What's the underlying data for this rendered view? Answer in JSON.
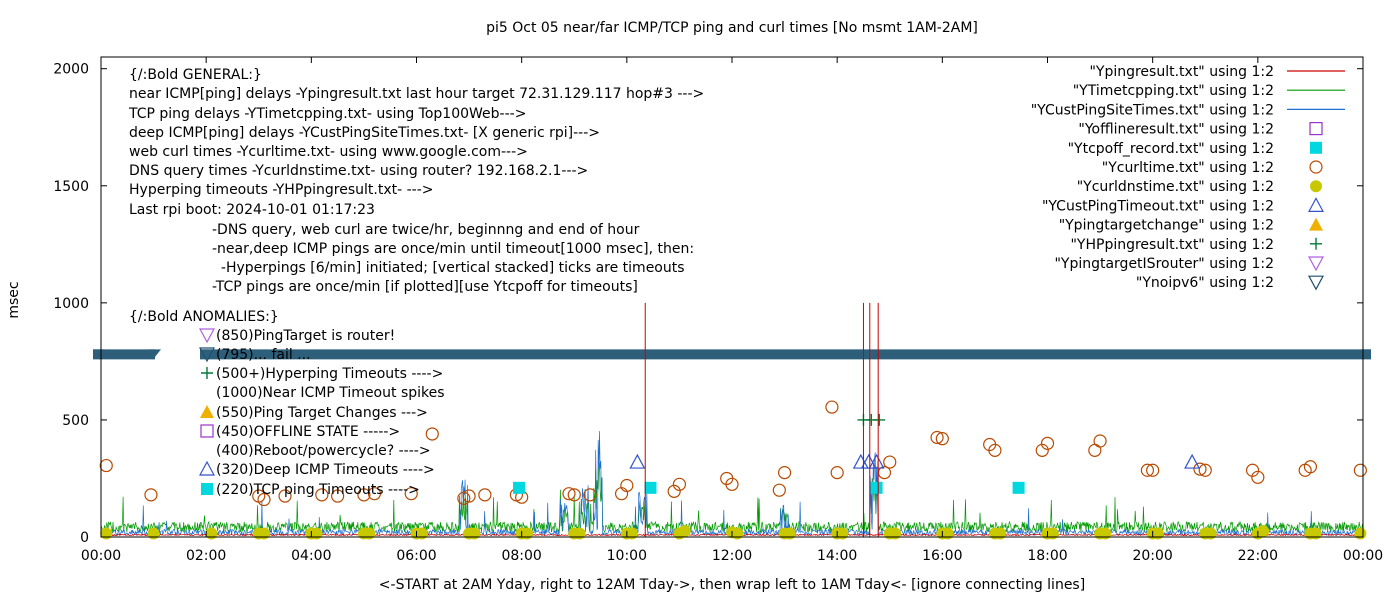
{
  "chart_data": {
    "type": "scatter",
    "title": "pi5 Oct 05  near/far ICMP/TCP ping and curl times [No msmt 1AM-2AM]",
    "xlabel": "<-START at 2AM Yday, right to 12AM Tday->, then wrap left to 1AM Tday<- [ignore connecting lines]",
    "ylabel": "msec",
    "xlim": [
      0,
      24
    ],
    "ylim": [
      0,
      2050
    ],
    "x_ticks": [
      "00:00",
      "02:00",
      "04:00",
      "06:00",
      "08:00",
      "10:00",
      "12:00",
      "14:00",
      "16:00",
      "18:00",
      "20:00",
      "22:00",
      "00:00"
    ],
    "y_ticks": [
      "0",
      "500",
      "1000",
      "1500",
      "2000"
    ],
    "x_tick_values": [
      0,
      2,
      4,
      6,
      8,
      10,
      12,
      14,
      16,
      18,
      20,
      22,
      24
    ],
    "y_tick_values": [
      0,
      500,
      1000,
      1500,
      2000
    ],
    "grid": false,
    "legend_position": "top-right",
    "band": {
      "y": 780,
      "color": "#2e5f7a",
      "note": "dense stacked timeout ticks across full width"
    },
    "legend": [
      {
        "label": "\"Ypingresult.txt\" using 1:2",
        "marker": "line",
        "color": "#cc0000"
      },
      {
        "label": "\"YTimetcpping.txt\" using 1:2",
        "marker": "line",
        "color": "#009900"
      },
      {
        "label": "\"YCustPingSiteTimes.txt\" using 1:2",
        "marker": "line",
        "color": "#1f6fd0"
      },
      {
        "label": "\"Yofflineresult.txt\" using 1:2",
        "marker": "open-square",
        "color": "#9933cc"
      },
      {
        "label": "\"Ytcpoff_record.txt\" using 1:2",
        "marker": "filled-square",
        "color": "#00d8e0"
      },
      {
        "label": "\"Ycurltime.txt\" using 1:2",
        "marker": "open-circle",
        "color": "#b84a00"
      },
      {
        "label": "\"Ycurldnstime.txt\" using 1:2",
        "marker": "filled-circle",
        "color": "#c8c800"
      },
      {
        "label": "\"YCustPingTimeout.txt\" using 1:2",
        "marker": "open-triangle",
        "color": "#3355cc"
      },
      {
        "label": "\"Ypingtargetchange\" using 1:2",
        "marker": "filled-triangle",
        "color": "#f0b000"
      },
      {
        "label": "\"YHPpingresult.txt\" using 1:2",
        "marker": "plus",
        "color": "#007a3a"
      },
      {
        "label": "\"YpingtargetISrouter\" using 1:2",
        "marker": "open-triangle-down",
        "color": "#b060e0"
      },
      {
        "label": "\"Ynoipv6\" using 1:2",
        "marker": "open-triangle-down",
        "color": "#1f4f70"
      }
    ],
    "annotations_general": [
      "{/:Bold GENERAL:}",
      "near ICMP[ping] delays -Ypingresult.txt last hour target 72.31.129.117 hop#3 --->",
      "TCP ping delays -YTimetcpping.txt- using Top100Web--->",
      "deep ICMP[ping] delays -YCustPingSiteTimes.txt- [X generic rpi]--->",
      "web curl times -Ycurltime.txt- using www.google.com--->",
      "DNS query times -Ycurldnstime.txt- using router? 192.168.2.1--->",
      "Hyperping timeouts -YHPpingresult.txt- --->",
      "Last rpi boot: 2024-10-01 01:17:23"
    ],
    "annotations_notes": [
      "-DNS query, web curl are twice/hr, beginnng and end of hour",
      "-near,deep ICMP pings are once/min until timeout[1000 msec], then:",
      "  -Hyperpings [6/min] initiated; [vertical stacked] ticks are timeouts",
      "-TCP pings are once/min [if plotted][use Ytcpoff for timeouts]"
    ],
    "annotations_anomalies_title": "{/:Bold ANOMALIES:}",
    "annotations_anomalies": [
      {
        "text": "(850)PingTarget is router!",
        "y": 850,
        "marker": "open-triangle-down",
        "color": "#b060e0"
      },
      {
        "text": "(795)... fail ...",
        "y": 795,
        "marker": "open-triangle-down",
        "color": "#1f4f70"
      },
      {
        "text": "(500+)Hyperping Timeouts ---->",
        "y": 700,
        "marker": "plus",
        "color": "#007a3a"
      },
      {
        "text": "(1000)Near ICMP Timeout spikes",
        "y": 620,
        "marker": "none",
        "color": "#000000"
      },
      {
        "text": "(550)Ping Target Changes --->",
        "y": 540,
        "marker": "filled-triangle",
        "color": "#f0b000"
      },
      {
        "text": "(450)OFFLINE STATE ----->",
        "y": 455,
        "marker": "open-square",
        "color": "#9933cc"
      },
      {
        "text": "(400)Reboot/powercycle? ---->",
        "y": 373,
        "marker": "none",
        "color": "#000000"
      },
      {
        "text": "(320)Deep ICMP Timeouts ---->",
        "y": 290,
        "marker": "open-triangle",
        "color": "#3355cc"
      },
      {
        "text": "(220)TCP ping Timeouts ---->",
        "y": 208,
        "marker": "filled-square",
        "color": "#00d8e0"
      }
    ],
    "series": [
      {
        "name": "\"Ycurltime.txt\" using 1:2",
        "marker": "open-circle",
        "color": "#b84a00",
        "x": [
          0.1,
          0.95,
          3.0,
          3.1,
          3.5,
          4.2,
          4.5,
          5.0,
          5.2,
          5.9,
          6.3,
          6.9,
          7.0,
          7.3,
          7.9,
          8.0,
          8.9,
          9.0,
          9.3,
          9.9,
          10.0,
          10.9,
          11.0,
          11.9,
          12.0,
          12.9,
          13.0,
          13.9,
          14.0,
          14.9,
          15.0,
          15.9,
          16.0,
          16.9,
          17.0,
          17.9,
          18.0,
          18.9,
          19.0,
          19.9,
          20.0,
          20.9,
          21.0,
          21.9,
          22.0,
          22.9,
          23.0,
          23.95
        ],
        "y": [
          305,
          180,
          175,
          160,
          175,
          180,
          175,
          180,
          185,
          185,
          440,
          165,
          175,
          180,
          180,
          170,
          185,
          180,
          180,
          185,
          220,
          195,
          225,
          250,
          225,
          200,
          275,
          555,
          275,
          275,
          320,
          425,
          420,
          395,
          370,
          370,
          400,
          370,
          410,
          285,
          285,
          290,
          285,
          285,
          255,
          285,
          300,
          285
        ]
      },
      {
        "name": "\"Ycurldnstime.txt\" using 1:2",
        "marker": "filled-circle",
        "color": "#c8c800",
        "x": [
          0.1,
          1.0,
          2.1,
          3.0,
          3.1,
          4.0,
          4.1,
          5.0,
          5.1,
          6.0,
          6.1,
          7.0,
          7.1,
          8.0,
          8.1,
          9.0,
          9.1,
          10.0,
          10.1,
          11.0,
          11.1,
          12.0,
          12.1,
          13.0,
          13.1,
          14.0,
          14.1,
          15.0,
          15.1,
          16.0,
          16.1,
          17.0,
          17.1,
          18.0,
          18.1,
          19.0,
          19.1,
          20.0,
          20.1,
          21.0,
          21.1,
          22.0,
          22.1,
          23.0,
          23.1,
          23.95
        ],
        "y": [
          15,
          15,
          15,
          15,
          15,
          15,
          15,
          15,
          15,
          15,
          15,
          15,
          15,
          15,
          15,
          15,
          15,
          15,
          15,
          15,
          25,
          20,
          15,
          15,
          15,
          15,
          15,
          15,
          15,
          15,
          15,
          15,
          15,
          15,
          15,
          15,
          15,
          15,
          15,
          15,
          15,
          15,
          25,
          15,
          15,
          15
        ]
      },
      {
        "name": "\"Ytcpoff_record.txt\" using 1:2",
        "marker": "filled-square",
        "color": "#00d8e0",
        "x": [
          7.95,
          10.45,
          14.75,
          17.45
        ],
        "y": [
          210,
          210,
          210,
          210
        ]
      },
      {
        "name": "\"YCustPingTimeout.txt\" using 1:2",
        "marker": "open-triangle",
        "color": "#3355cc",
        "x": [
          10.2,
          14.45,
          14.6,
          14.75,
          20.75
        ],
        "y": [
          320,
          320,
          320,
          320,
          320
        ]
      },
      {
        "name": "\"YHPpingresult.txt\" using 1:2",
        "marker": "plus",
        "color": "#007a3a",
        "x": [
          14.5,
          14.65,
          14.8
        ],
        "y": [
          500,
          500,
          500
        ]
      },
      {
        "name": "\"Ypingresult.txt\" using 1:2",
        "marker": "spike",
        "color": "#cc0000",
        "x": [
          10.35,
          14.5,
          14.62,
          14.78
        ],
        "y": [
          1000,
          1000,
          1000,
          1000
        ]
      }
    ]
  }
}
